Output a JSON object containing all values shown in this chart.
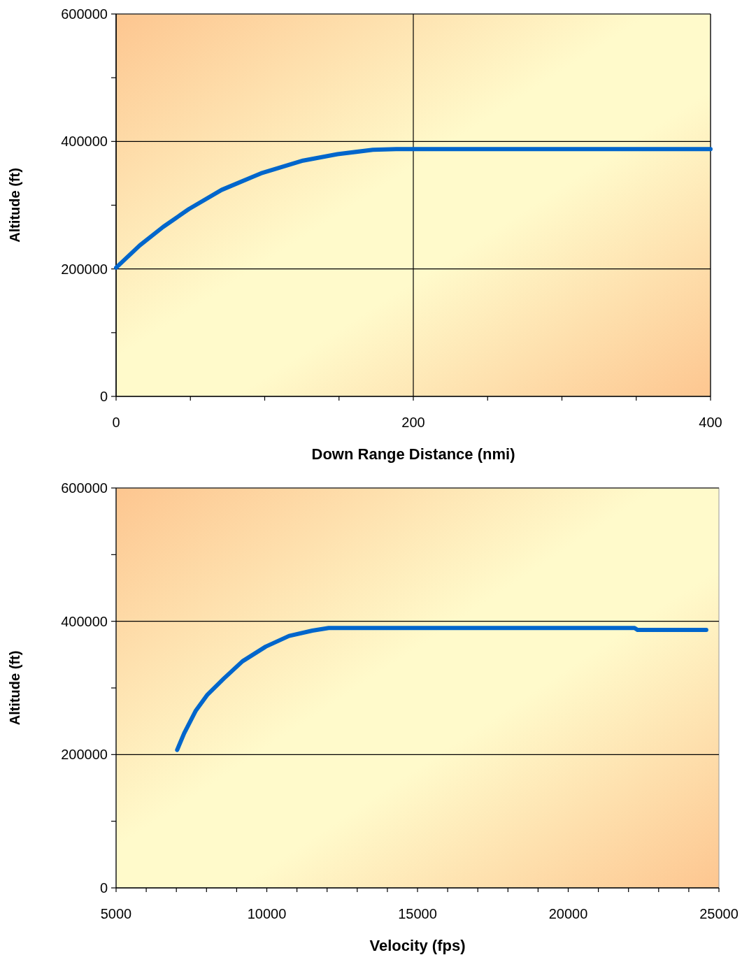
{
  "chart_data": [
    {
      "type": "line",
      "xlabel": "Down Range Distance (nmi)",
      "ylabel": "Altitude (ft)",
      "grid": true,
      "x": [
        0,
        16,
        31.7,
        49,
        71,
        97.5,
        125.8,
        149,
        172.8,
        188.6,
        250,
        300,
        350,
        400
      ],
      "series": [
        {
          "color": "#0066cc",
          "values": [
            202000,
            237000,
            266000,
            294000,
            324000,
            350000,
            370000,
            380000,
            387000,
            388000,
            388000,
            388000,
            388000,
            388000
          ]
        }
      ],
      "xlim": [
        0,
        400
      ],
      "xticks": [
        0,
        {
          "value": 50,
          "label": null
        },
        {
          "value": 100,
          "label": null
        },
        {
          "value": 150,
          "label": null
        },
        200,
        {
          "value": 250,
          "label": null
        },
        {
          "value": 300,
          "label": null
        },
        {
          "value": 350,
          "label": null
        },
        400
      ],
      "ylim": [
        0,
        600000
      ],
      "yticks": [
        0,
        {
          "value": 100000,
          "label": null
        },
        200000,
        {
          "value": 300000,
          "label": null
        },
        400000,
        {
          "value": 500000,
          "label": null
        },
        600000
      ]
    },
    {
      "type": "line",
      "xlabel": "Velocity (fps)",
      "ylabel": "Altitude (ft)",
      "grid": "y",
      "x": [
        7026,
        7258,
        7645,
        8032,
        8573,
        9193,
        9965,
        10738,
        11513,
        12053,
        15000,
        20000,
        22200,
        22300,
        24580
      ],
      "series": [
        {
          "color": "#0066cc",
          "values": [
            207000,
            232000,
            266000,
            290000,
            314000,
            340000,
            362000,
            378000,
            386000,
            390000,
            390000,
            390000,
            390000,
            387000,
            387000
          ]
        }
      ],
      "xlim": [
        5000,
        25000
      ],
      "xticks": [
        5000,
        {
          "value": 6000,
          "label": null
        },
        {
          "value": 7000,
          "label": null
        },
        {
          "value": 8000,
          "label": null
        },
        {
          "value": 9000,
          "label": null
        },
        10000,
        {
          "value": 11000,
          "label": null
        },
        {
          "value": 12000,
          "label": null
        },
        {
          "value": 13000,
          "label": null
        },
        {
          "value": 14000,
          "label": null
        },
        15000,
        {
          "value": 16000,
          "label": null
        },
        {
          "value": 17000,
          "label": null
        },
        {
          "value": 18000,
          "label": null
        },
        {
          "value": 19000,
          "label": null
        },
        20000,
        {
          "value": 21000,
          "label": null
        },
        {
          "value": 22000,
          "label": null
        },
        {
          "value": 23000,
          "label": null
        },
        {
          "value": 24000,
          "label": null
        },
        25000
      ],
      "ylim": [
        0,
        600000
      ],
      "yticks": [
        0,
        {
          "value": 100000,
          "label": null
        },
        200000,
        {
          "value": 300000,
          "label": null
        },
        400000,
        {
          "value": 500000,
          "label": null
        },
        600000
      ]
    }
  ]
}
